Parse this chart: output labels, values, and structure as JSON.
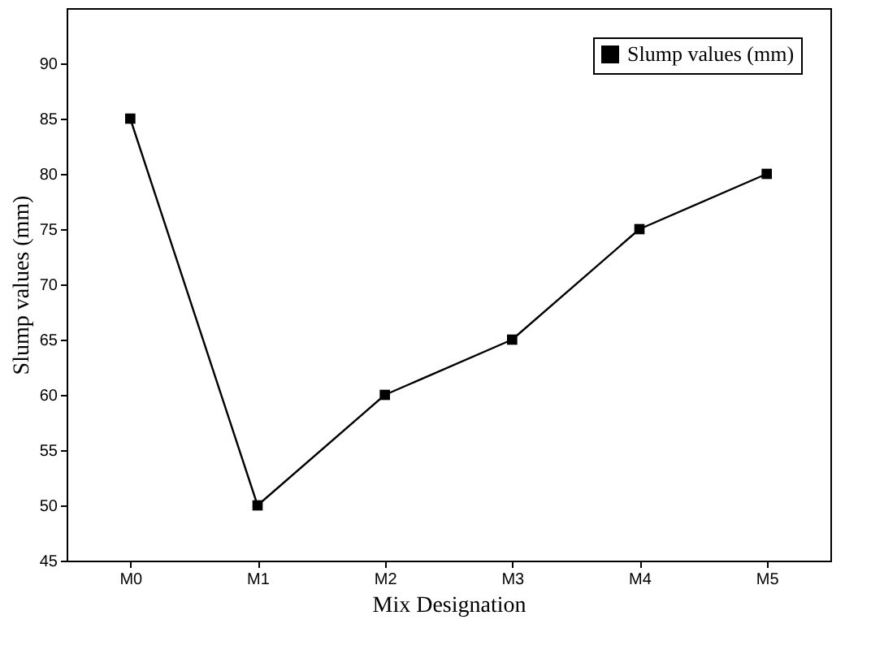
{
  "chart_data": {
    "type": "line",
    "xlabel": "Mix Designation",
    "ylabel": "Slump values (mm)",
    "categories": [
      "M0",
      "M1",
      "M2",
      "M3",
      "M4",
      "M5"
    ],
    "series": [
      {
        "name": "Slump values (mm)",
        "color": "#000000",
        "values": [
          85,
          50,
          60,
          65,
          75,
          80
        ]
      }
    ],
    "ylim": [
      45,
      95
    ],
    "yticks": [
      45,
      50,
      55,
      60,
      65,
      70,
      75,
      80,
      85,
      90
    ],
    "grid": false,
    "legend": "top right",
    "marker": "square",
    "line_style": "solid"
  }
}
